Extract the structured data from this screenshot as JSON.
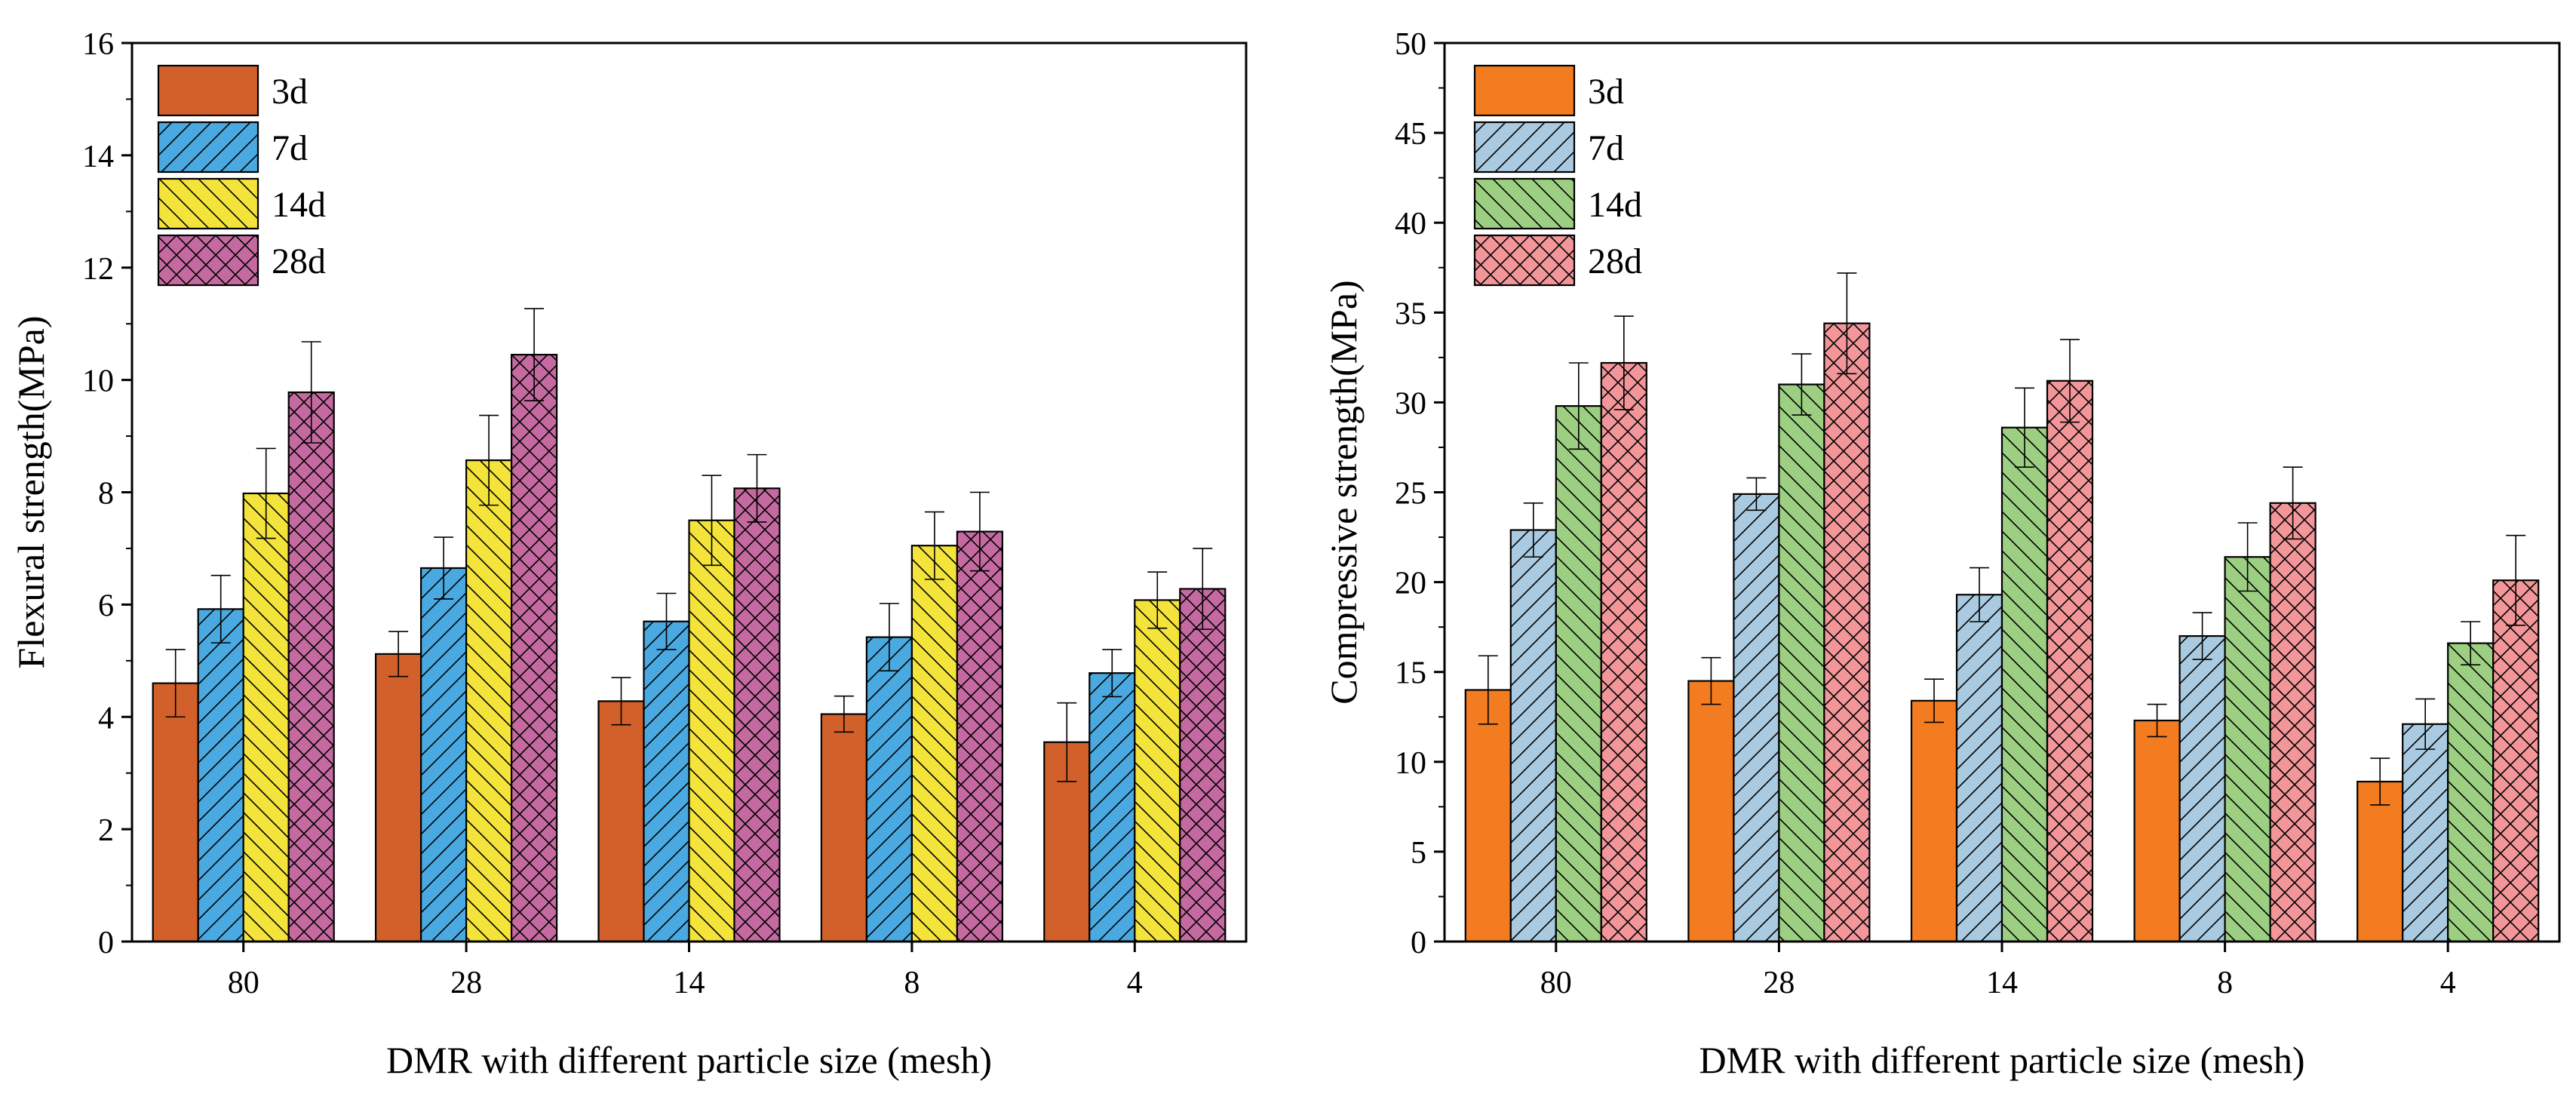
{
  "chart_data": [
    {
      "type": "bar",
      "title": "",
      "xlabel": "DMR with different particle size (mesh)",
      "ylabel": "Flexural strength(MPa)",
      "ylim": [
        0,
        16
      ],
      "yticks": [
        0,
        2,
        4,
        6,
        8,
        10,
        12,
        14,
        16
      ],
      "categories": [
        "80",
        "28",
        "14",
        "8",
        "4"
      ],
      "legend_position": "top-left",
      "series": [
        {
          "name": "3d",
          "values": [
            4.6,
            5.12,
            4.28,
            4.05,
            3.55
          ],
          "errors": [
            0.6,
            0.4,
            0.42,
            0.32,
            0.7
          ],
          "color": "#d2602b",
          "pattern": "none"
        },
        {
          "name": "7d",
          "values": [
            5.92,
            6.65,
            5.7,
            5.42,
            4.78
          ],
          "errors": [
            0.6,
            0.55,
            0.5,
            0.6,
            0.42
          ],
          "color": "#4aa9e0",
          "pattern": "diag"
        },
        {
          "name": "14d",
          "values": [
            7.98,
            8.57,
            7.5,
            7.05,
            6.08
          ],
          "errors": [
            0.8,
            0.8,
            0.8,
            0.6,
            0.5
          ],
          "color": "#f4e33a",
          "pattern": "backdiag"
        },
        {
          "name": "28d",
          "values": [
            9.78,
            10.45,
            8.07,
            7.3,
            6.28
          ],
          "errors": [
            0.9,
            0.82,
            0.6,
            0.7,
            0.72
          ],
          "color": "#c56aa0",
          "pattern": "cross"
        }
      ]
    },
    {
      "type": "bar",
      "title": "",
      "xlabel": "DMR with different particle size (mesh)",
      "ylabel": "Compressive strength(MPa)",
      "ylim": [
        0,
        50
      ],
      "yticks": [
        0,
        5,
        10,
        15,
        20,
        25,
        30,
        35,
        40,
        45,
        50
      ],
      "categories": [
        "80",
        "28",
        "14",
        "8",
        "4"
      ],
      "legend_position": "top-left",
      "series": [
        {
          "name": "3d",
          "values": [
            14.0,
            14.5,
            13.4,
            12.3,
            8.9
          ],
          "errors": [
            1.9,
            1.3,
            1.2,
            0.9,
            1.3
          ],
          "color": "#f37b20",
          "pattern": "none"
        },
        {
          "name": "7d",
          "values": [
            22.9,
            24.9,
            19.3,
            17.0,
            12.1
          ],
          "errors": [
            1.5,
            0.9,
            1.5,
            1.3,
            1.4
          ],
          "color": "#a9cae0",
          "pattern": "diag"
        },
        {
          "name": "14d",
          "values": [
            29.8,
            31.0,
            28.6,
            21.4,
            16.6
          ],
          "errors": [
            2.4,
            1.7,
            2.2,
            1.9,
            1.2
          ],
          "color": "#9ccf82",
          "pattern": "backdiag"
        },
        {
          "name": "28d",
          "values": [
            32.2,
            34.4,
            31.2,
            24.4,
            20.1
          ],
          "errors": [
            2.6,
            2.8,
            2.3,
            2.0,
            2.5
          ],
          "color": "#f2969a",
          "pattern": "cross"
        }
      ]
    }
  ]
}
